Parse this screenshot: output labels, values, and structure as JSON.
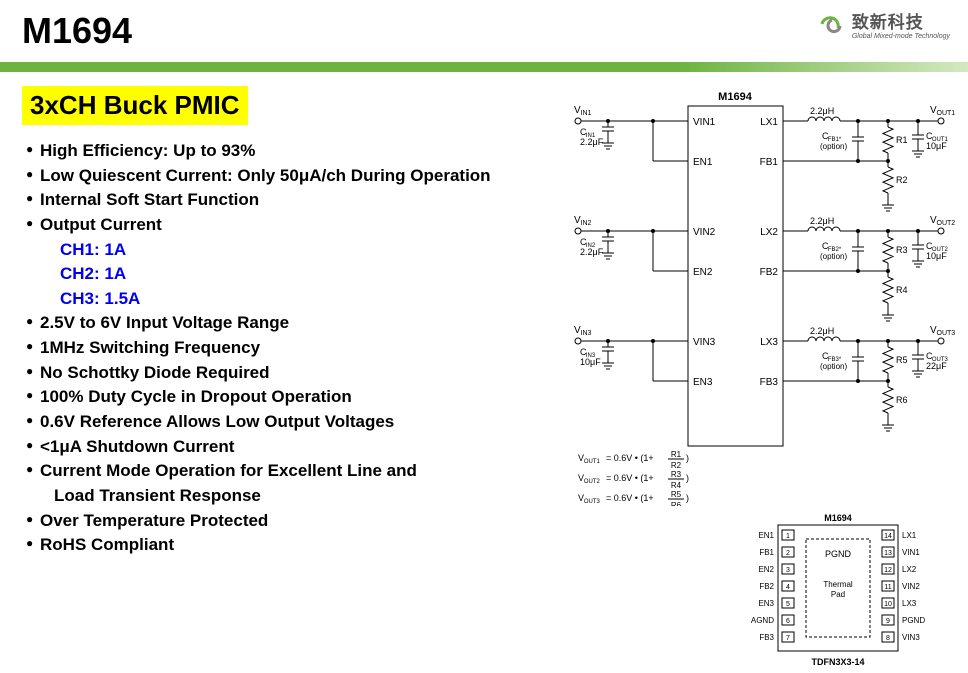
{
  "header": {
    "part_number": "M1694",
    "logo_cn": "致新科技",
    "logo_en": "Global Mixed-mode Technology"
  },
  "title": "3xCH Buck PMIC",
  "features": [
    {
      "text": "High Efficiency: Up to 93%",
      "type": "main"
    },
    {
      "text": "Low Quiescent Current: Only 50μA/ch During Operation",
      "type": "main"
    },
    {
      "text": "Internal Soft Start Function",
      "type": "main"
    },
    {
      "text": "Output Current",
      "type": "main"
    },
    {
      "text": "CH1: 1A",
      "type": "sub"
    },
    {
      "text": "CH2: 1A",
      "type": "sub"
    },
    {
      "text": "CH3: 1.5A",
      "type": "sub"
    },
    {
      "text": "2.5V to 6V Input Voltage Range",
      "type": "main"
    },
    {
      "text": "1MHz Switching Frequency",
      "type": "main"
    },
    {
      "text": "No Schottky Diode Required",
      "type": "main"
    },
    {
      "text": "100% Duty Cycle in Dropout Operation",
      "type": "main"
    },
    {
      "text": "0.6V Reference Allows Low Output Voltages",
      "type": "main"
    },
    {
      "text": "<1μA Shutdown Current",
      "type": "main"
    },
    {
      "text": "Current Mode Operation for Excellent Line and",
      "type": "main"
    },
    {
      "text": "Load Transient Response",
      "type": "cont"
    },
    {
      "text": "Over Temperature Protected",
      "type": "main"
    },
    {
      "text": "RoHS Compliant",
      "type": "main"
    }
  ],
  "schematic": {
    "chip_label": "M1694",
    "channels": [
      {
        "vin": "V",
        "vin_sub": "IN1",
        "cin": "C",
        "cin_sub": "IN1",
        "cin_val": "2.2μF",
        "vin_pin": "VIN1",
        "en_pin": "EN1",
        "lx_pin": "LX1",
        "fb_pin": "FB1",
        "ind": "2.2μH",
        "vout": "V",
        "vout_sub": "OUT1",
        "cfb": "C",
        "cfb_sub": "FB1",
        "opt": "(option)",
        "rtop": "R1",
        "rbot": "R2",
        "cout": "C",
        "cout_sub": "OUT1",
        "cout_val": "10μF"
      },
      {
        "vin": "V",
        "vin_sub": "IN2",
        "cin": "C",
        "cin_sub": "IN2",
        "cin_val": "2.2μF",
        "vin_pin": "VIN2",
        "en_pin": "EN2",
        "lx_pin": "LX2",
        "fb_pin": "FB2",
        "ind": "2.2μH",
        "vout": "V",
        "vout_sub": "OUT2",
        "cfb": "C",
        "cfb_sub": "FB2",
        "opt": "(option)",
        "rtop": "R3",
        "rbot": "R4",
        "cout": "C",
        "cout_sub": "OUT2",
        "cout_val": "10μF"
      },
      {
        "vin": "V",
        "vin_sub": "IN3",
        "cin": "C",
        "cin_sub": "IN3",
        "cin_val": "10μF",
        "vin_pin": "VIN3",
        "en_pin": "EN3",
        "lx_pin": "LX3",
        "fb_pin": "FB3",
        "ind": "2.2μH",
        "vout": "V",
        "vout_sub": "OUT3",
        "cfb": "C",
        "cfb_sub": "FB3",
        "opt": "(option)",
        "rtop": "R5",
        "rbot": "R6",
        "cout": "C",
        "cout_sub": "OUT3",
        "cout_val": "22μF"
      }
    ],
    "equations": [
      {
        "pre": "V",
        "sub": "OUT1",
        "body": " = 0.6V • (1+ ",
        "num": "R1",
        "den": "R2",
        "post": " )"
      },
      {
        "pre": "V",
        "sub": "OUT2",
        "body": " = 0.6V • (1+ ",
        "num": "R3",
        "den": "R4",
        "post": " )"
      },
      {
        "pre": "V",
        "sub": "OUT3",
        "body": " = 0.6V • (1+ ",
        "num": "R5",
        "den": "R6",
        "post": " )"
      }
    ]
  },
  "pinout": {
    "chip_label": "M1694",
    "pgnd": "PGND",
    "thermal": "Thermal\nPad",
    "package": "TDFN3X3-14",
    "left_pins": [
      "EN1",
      "FB1",
      "EN2",
      "FB2",
      "EN3",
      "AGND",
      "FB3"
    ],
    "right_pins": [
      "LX1",
      "VIN1",
      "LX2",
      "VIN2",
      "LX3",
      "PGND",
      "VIN3"
    ],
    "left_nums": [
      "1",
      "2",
      "3",
      "4",
      "5",
      "6",
      "7"
    ],
    "right_nums": [
      "14",
      "13",
      "12",
      "11",
      "10",
      "9",
      "8"
    ]
  },
  "colors": {
    "highlight": "#ffff00",
    "link": "#0000ee",
    "bar": "#6cb33f"
  }
}
